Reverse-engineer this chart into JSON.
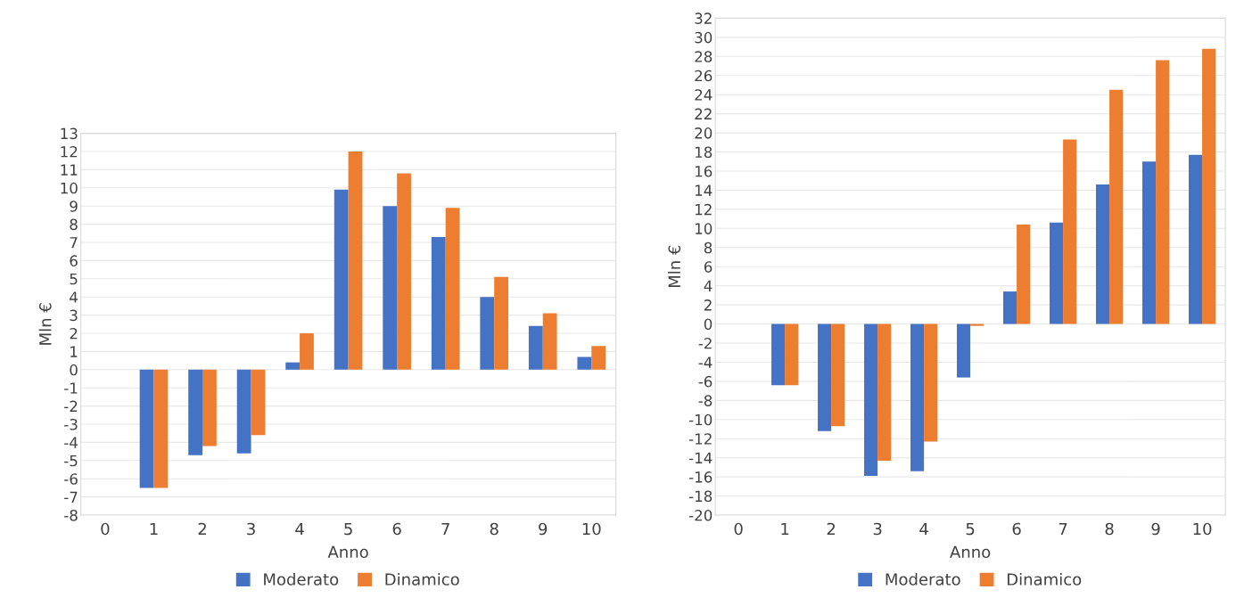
{
  "chart_data": [
    {
      "type": "bar",
      "xlabel": "Anno",
      "ylabel": "Mln €",
      "categories": [
        "0",
        "1",
        "2",
        "3",
        "4",
        "5",
        "6",
        "7",
        "8",
        "9",
        "10"
      ],
      "series": [
        {
          "name": "Moderato",
          "color": "#4472c4",
          "values": [
            0,
            -6.5,
            -4.7,
            -4.6,
            0.4,
            9.9,
            9.0,
            7.3,
            4.0,
            2.4,
            0.7
          ]
        },
        {
          "name": "Dinamico",
          "color": "#ed7d31",
          "values": [
            0,
            -6.5,
            -4.2,
            -3.6,
            2.0,
            12.0,
            10.8,
            8.9,
            5.1,
            3.1,
            1.3
          ]
        }
      ],
      "ylim": [
        -8,
        13
      ],
      "yticks": [
        -8,
        -7,
        -6,
        -5,
        -4,
        -3,
        -2,
        -1,
        0,
        1,
        2,
        3,
        4,
        5,
        6,
        7,
        8,
        9,
        10,
        11,
        12,
        13
      ],
      "grid": "y",
      "legend": "bottom"
    },
    {
      "type": "bar",
      "xlabel": "Anno",
      "ylabel": "Mln €",
      "categories": [
        "0",
        "1",
        "2",
        "3",
        "4",
        "5",
        "6",
        "7",
        "8",
        "9",
        "10"
      ],
      "series": [
        {
          "name": "Moderato",
          "color": "#4472c4",
          "values": [
            0,
            -6.4,
            -11.2,
            -15.9,
            -15.4,
            -5.6,
            3.4,
            10.6,
            14.6,
            17.0,
            17.7
          ]
        },
        {
          "name": "Dinamico",
          "color": "#ed7d31",
          "values": [
            0,
            -6.4,
            -10.7,
            -14.3,
            -12.3,
            -0.2,
            10.4,
            19.3,
            24.5,
            27.6,
            28.8
          ]
        }
      ],
      "ylim": [
        -20,
        32
      ],
      "yticks": [
        -20,
        -18,
        -16,
        -14,
        -12,
        -10,
        -8,
        -6,
        -4,
        -2,
        0,
        2,
        4,
        6,
        8,
        10,
        12,
        14,
        16,
        18,
        20,
        22,
        24,
        26,
        28,
        30,
        32
      ],
      "grid": "y",
      "legend": "bottom"
    }
  ]
}
